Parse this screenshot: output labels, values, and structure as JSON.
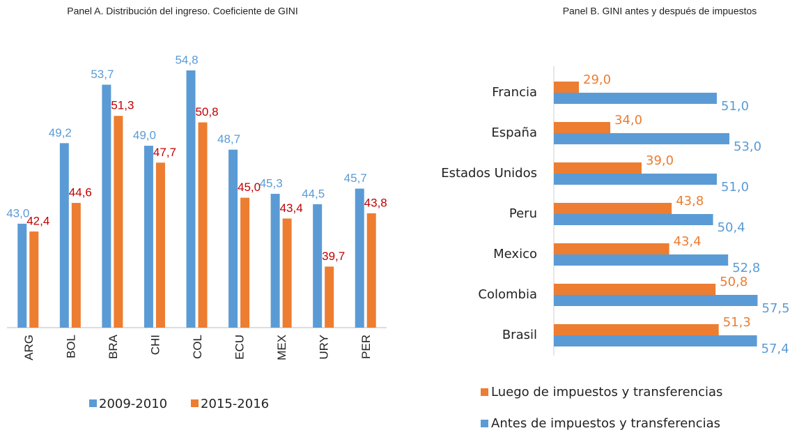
{
  "chart_data": [
    {
      "type": "bar",
      "title": "Panel A. Distribución del ingreso. Coeficiente de GINI",
      "categories": [
        "ARG",
        "BOL",
        "BRA",
        "CHI",
        "COL",
        "ECU",
        "MEX",
        "URY",
        "PER"
      ],
      "ylim": [
        35,
        57
      ],
      "series": [
        {
          "name": "2009-2010",
          "color": "#5b9bd5",
          "label_color": "#5b9bd5",
          "values": [
            43.0,
            49.2,
            53.7,
            49.0,
            54.8,
            48.7,
            45.3,
            44.5,
            45.7
          ],
          "value_labels": [
            "43,0",
            "49,2",
            "53,7",
            "49,0",
            "54,8",
            "48,7",
            "45,3",
            "44,5",
            "45,7"
          ]
        },
        {
          "name": "2015-2016",
          "color": "#ed7d31",
          "label_color": "#c00000",
          "values": [
            42.4,
            44.6,
            51.3,
            47.7,
            50.8,
            45.0,
            43.4,
            39.7,
            43.8
          ],
          "value_labels": [
            "42,4",
            "44,6",
            "51,3",
            "47,7",
            "50,8",
            "45,0",
            "43,4",
            "39,7",
            "43,8"
          ]
        }
      ]
    },
    {
      "type": "barh",
      "title": "Panel B. GINI antes y después de impuestos",
      "categories": [
        "Francia",
        "España",
        "Estados Unidos",
        "Peru",
        "Mexico",
        "Colombia",
        "Brasil"
      ],
      "xlim": [
        25,
        60
      ],
      "series": [
        {
          "name": "Luego de impuestos y transferencias",
          "color": "#ed7d31",
          "label_color": "#ed7d31",
          "values": [
            29.0,
            34.0,
            39.0,
            43.8,
            43.4,
            50.8,
            51.3
          ],
          "value_labels": [
            "29,0",
            "34,0",
            "39,0",
            "43,8",
            "43,4",
            "50,8",
            "51,3"
          ]
        },
        {
          "name": "Antes de impuestos y transferencias",
          "color": "#5b9bd5",
          "label_color": "#5b9bd5",
          "values": [
            51.0,
            53.0,
            51.0,
            50.4,
            52.8,
            57.5,
            57.4
          ],
          "value_labels": [
            "51,0",
            "53,0",
            "51,0",
            "50,4",
            "52,8",
            "57,5",
            "57,4"
          ]
        }
      ]
    }
  ]
}
